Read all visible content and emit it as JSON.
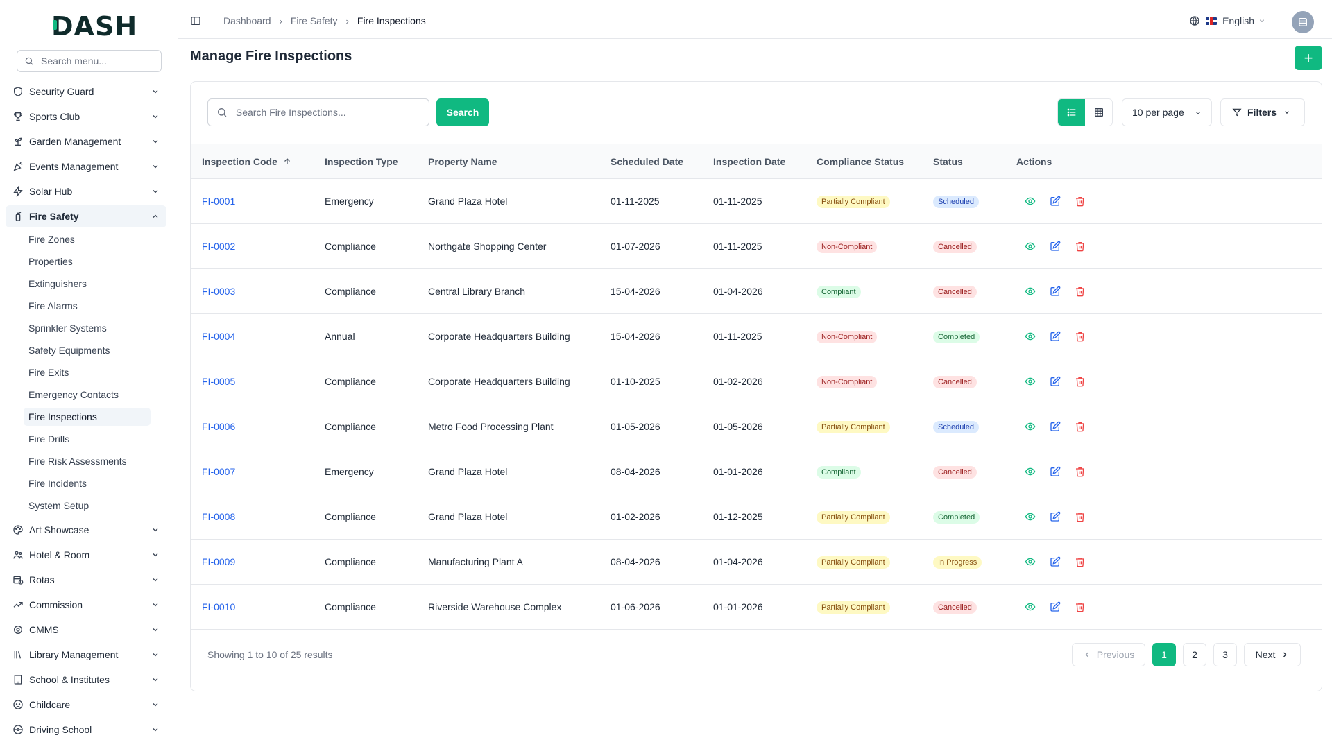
{
  "app": {
    "logo": "DASH"
  },
  "sidebar": {
    "search_placeholder": "Search menu...",
    "items_top": [
      {
        "label": "Security Guard",
        "icon": "shield-icon"
      },
      {
        "label": "Sports Club",
        "icon": "trophy-icon"
      },
      {
        "label": "Garden Management",
        "icon": "sprout-icon"
      },
      {
        "label": "Events Management",
        "icon": "party-icon"
      },
      {
        "label": "Solar Hub",
        "icon": "bolt-icon"
      },
      {
        "label": "Fire Safety",
        "icon": "fire-extinguisher-icon",
        "expanded": true
      }
    ],
    "fire_safety_sub": [
      {
        "label": "Fire Zones"
      },
      {
        "label": "Properties"
      },
      {
        "label": "Extinguishers"
      },
      {
        "label": "Fire Alarms"
      },
      {
        "label": "Sprinkler Systems"
      },
      {
        "label": "Safety Equipments"
      },
      {
        "label": "Fire Exits"
      },
      {
        "label": "Emergency Contacts"
      },
      {
        "label": "Fire Inspections",
        "active": true
      },
      {
        "label": "Fire Drills"
      },
      {
        "label": "Fire Risk Assessments"
      },
      {
        "label": "Fire Incidents"
      },
      {
        "label": "System Setup"
      }
    ],
    "items_bottom": [
      {
        "label": "Art Showcase",
        "icon": "palette-icon"
      },
      {
        "label": "Hotel & Room",
        "icon": "people-icon"
      },
      {
        "label": "Rotas",
        "icon": "calendar-clock-icon"
      },
      {
        "label": "Commission",
        "icon": "trend-up-icon"
      },
      {
        "label": "CMMS",
        "icon": "cog-icon"
      },
      {
        "label": "Library Management",
        "icon": "library-icon"
      },
      {
        "label": "School & Institutes",
        "icon": "building-icon"
      },
      {
        "label": "Childcare",
        "icon": "baby-icon"
      },
      {
        "label": "Driving School",
        "icon": "steering-wheel-icon"
      }
    ]
  },
  "header": {
    "breadcrumbs": [
      "Dashboard",
      "Fire Safety",
      "Fire Inspections"
    ],
    "language": "English"
  },
  "page": {
    "title": "Manage Fire Inspections",
    "add_label": "+"
  },
  "toolbar": {
    "search_placeholder": "Search Fire Inspections...",
    "search_label": "Search",
    "per_page": "10 per page",
    "filters_label": "Filters"
  },
  "table": {
    "columns": [
      "Inspection Code",
      "Inspection Type",
      "Property Name",
      "Scheduled Date",
      "Inspection Date",
      "Compliance Status",
      "Status",
      "Actions"
    ],
    "rows": [
      {
        "code": "FI-0001",
        "type": "Emergency",
        "property": "Grand Plaza Hotel",
        "scheduled": "01-11-2025",
        "inspected": "01-11-2025",
        "compliance": "Partially Compliant",
        "status": "Scheduled"
      },
      {
        "code": "FI-0002",
        "type": "Compliance",
        "property": "Northgate Shopping Center",
        "scheduled": "01-07-2026",
        "inspected": "01-11-2025",
        "compliance": "Non-Compliant",
        "status": "Cancelled"
      },
      {
        "code": "FI-0003",
        "type": "Compliance",
        "property": "Central Library Branch",
        "scheduled": "15-04-2026",
        "inspected": "01-04-2026",
        "compliance": "Compliant",
        "status": "Cancelled"
      },
      {
        "code": "FI-0004",
        "type": "Annual",
        "property": "Corporate Headquarters Building",
        "scheduled": "15-04-2026",
        "inspected": "01-11-2025",
        "compliance": "Non-Compliant",
        "status": "Completed"
      },
      {
        "code": "FI-0005",
        "type": "Compliance",
        "property": "Corporate Headquarters Building",
        "scheduled": "01-10-2025",
        "inspected": "01-02-2026",
        "compliance": "Non-Compliant",
        "status": "Cancelled"
      },
      {
        "code": "FI-0006",
        "type": "Compliance",
        "property": "Metro Food Processing Plant",
        "scheduled": "01-05-2026",
        "inspected": "01-05-2026",
        "compliance": "Partially Compliant",
        "status": "Scheduled"
      },
      {
        "code": "FI-0007",
        "type": "Emergency",
        "property": "Grand Plaza Hotel",
        "scheduled": "08-04-2026",
        "inspected": "01-01-2026",
        "compliance": "Compliant",
        "status": "Cancelled"
      },
      {
        "code": "FI-0008",
        "type": "Compliance",
        "property": "Grand Plaza Hotel",
        "scheduled": "01-02-2026",
        "inspected": "01-12-2025",
        "compliance": "Partially Compliant",
        "status": "Completed"
      },
      {
        "code": "FI-0009",
        "type": "Compliance",
        "property": "Manufacturing Plant A",
        "scheduled": "08-04-2026",
        "inspected": "01-04-2026",
        "compliance": "Partially Compliant",
        "status": "In Progress"
      },
      {
        "code": "FI-0010",
        "type": "Compliance",
        "property": "Riverside Warehouse Complex",
        "scheduled": "01-06-2026",
        "inspected": "01-01-2026",
        "compliance": "Partially Compliant",
        "status": "Cancelled"
      }
    ]
  },
  "pagination": {
    "info": "Showing 1 to 10 of 25 results",
    "prev": "Previous",
    "next": "Next",
    "pages": [
      "1",
      "2",
      "3"
    ],
    "current": "1"
  },
  "colors": {
    "accent": "#10b981",
    "link": "#2563eb",
    "danger": "#ef4444"
  }
}
